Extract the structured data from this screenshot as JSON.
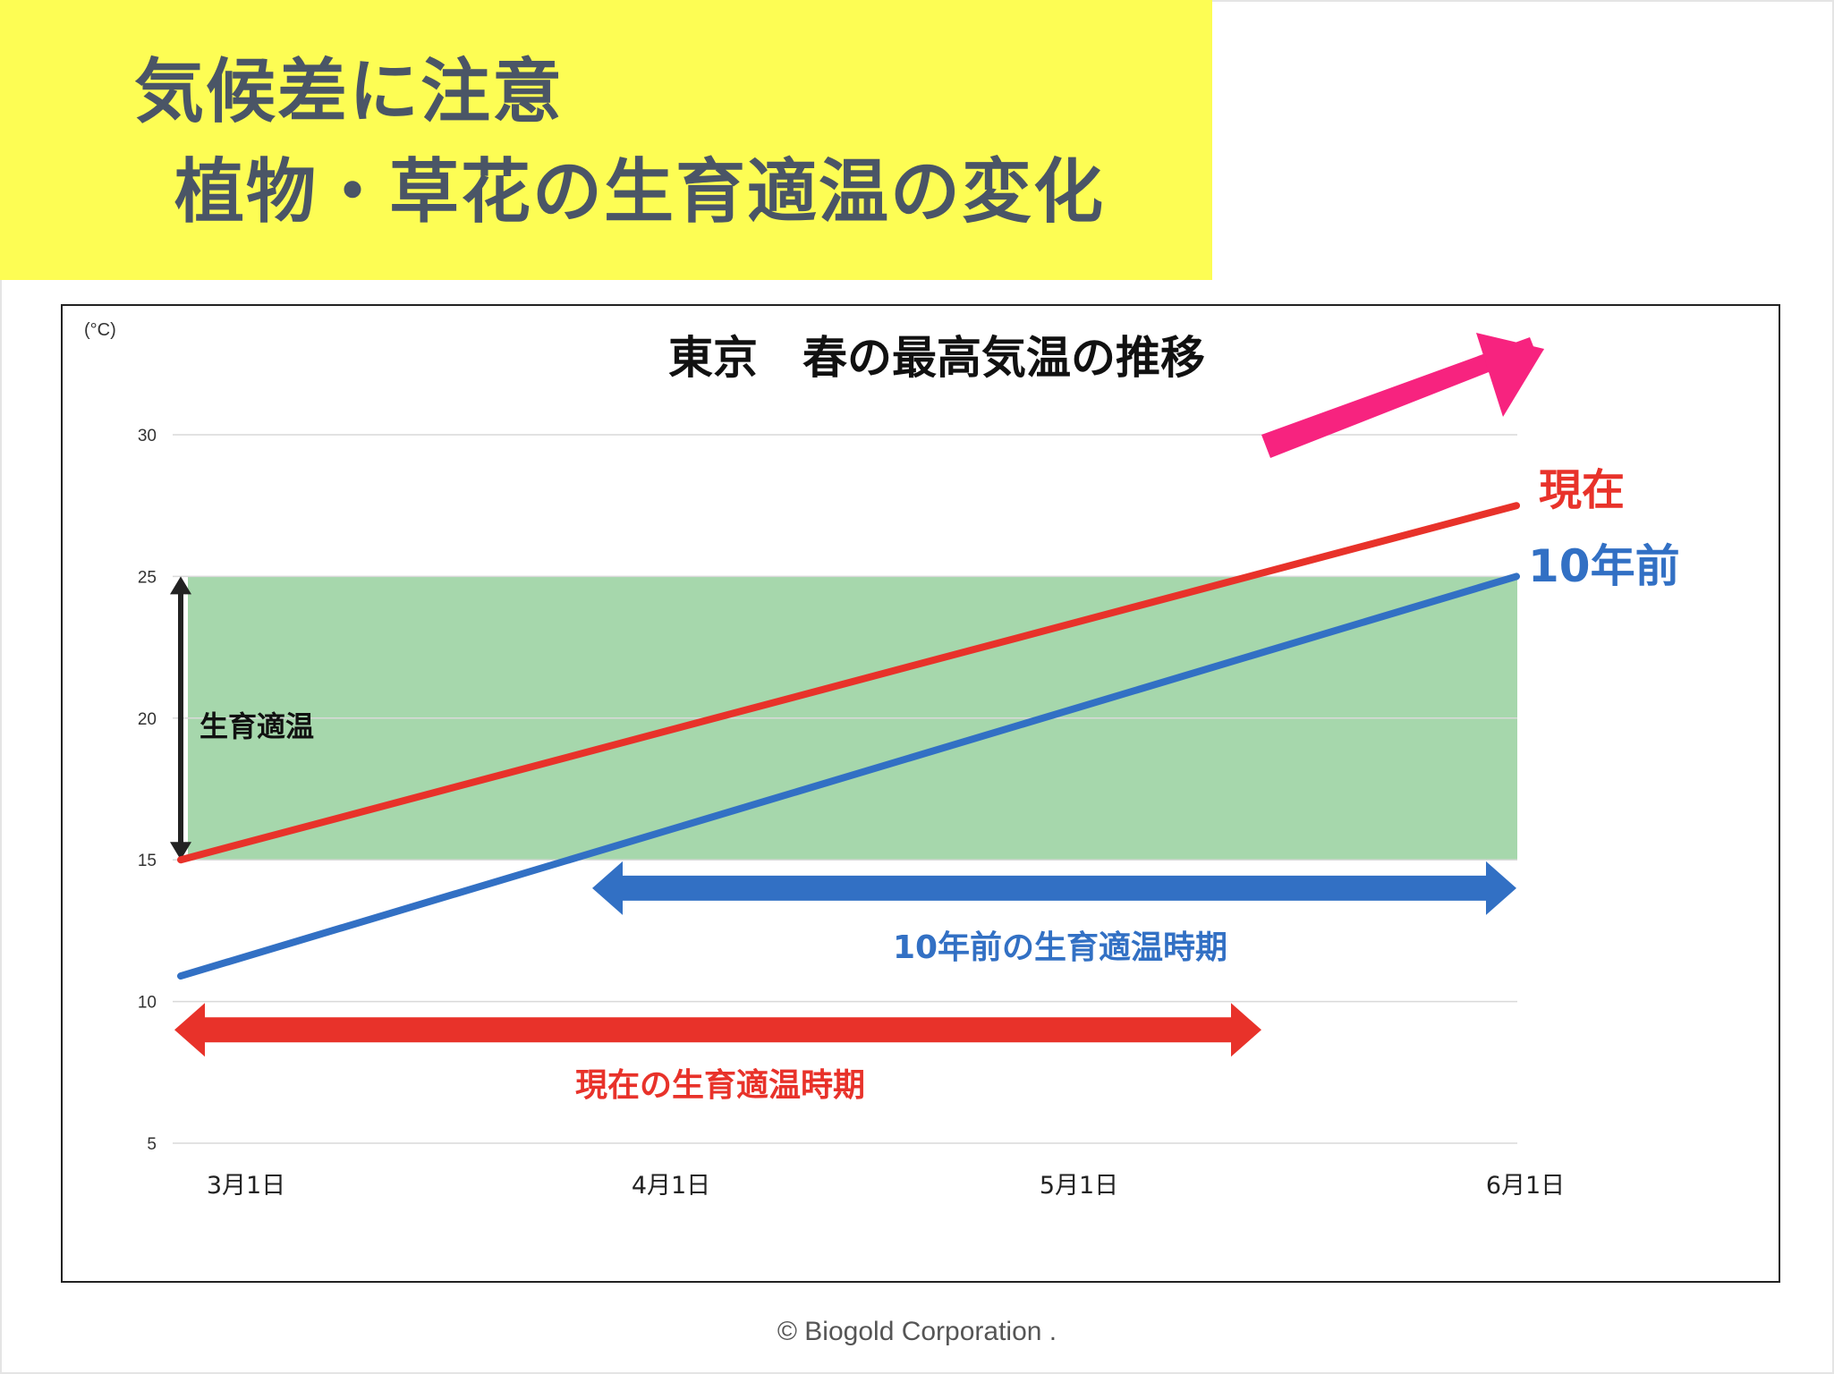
{
  "banner": {
    "line1": "気候差に注意",
    "line2": "植物・草花の生育適温の変化",
    "background": "#fdfd54",
    "text_color": "#4a5566"
  },
  "footer": {
    "copyright": "©  Biogold  Corporation  ."
  },
  "chart_data": {
    "type": "line",
    "title": "東京　春の最高気温の推移",
    "ylabel": "(°C)",
    "xlabel": "",
    "x_ticks": [
      "3月1日",
      "4月1日",
      "5月1日",
      "6月1日"
    ],
    "y_ticks": [
      5,
      10,
      15,
      20,
      25,
      30
    ],
    "ylim": [
      5,
      30
    ],
    "xlim": [
      "3月1日",
      "6月1日"
    ],
    "grid": true,
    "series": [
      {
        "name": "現在",
        "color": "#e8322a",
        "x": [
          "3月1日",
          "6月1日"
        ],
        "y": [
          15,
          27.5
        ]
      },
      {
        "name": "10年前",
        "color": "#3270c4",
        "x": [
          "3月1日",
          "6月1日"
        ],
        "y": [
          10.9,
          25
        ]
      }
    ],
    "band": {
      "label": "生育適温",
      "y_range": [
        15,
        25
      ],
      "color": "#a6d7ac"
    },
    "period_arrows": [
      {
        "label": "10年前の生育適温時期",
        "color": "#3270c4",
        "y": 14,
        "x_start": "4月1日",
        "x_end": "6月1日"
      },
      {
        "label": "現在の生育適温時期",
        "color": "#e8322a",
        "y": 9,
        "x_start": "3月1日",
        "x_end": "5月1日"
      }
    ],
    "trend_arrow_color": "#f7237f"
  }
}
